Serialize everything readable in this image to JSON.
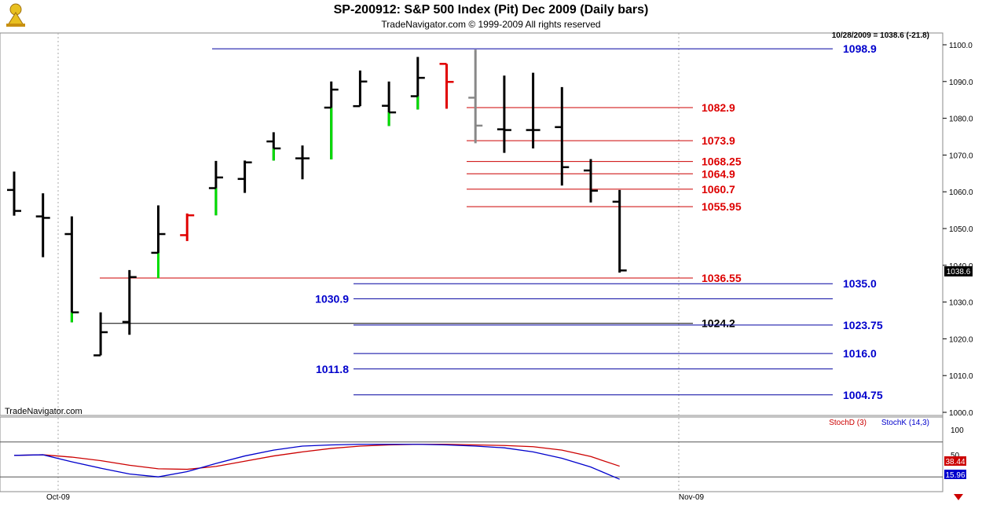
{
  "header": {
    "title": "SP-200912:  S&P 500 Index (Pit) Dec 2009  (Daily bars)",
    "subtitle": "TradeNavigator.com © 1999-2009 All rights reserved"
  },
  "watermark": "TradeNavigator.com",
  "colors": {
    "up": "#00dd00",
    "down": "#e00000",
    "neutral": "#000000",
    "gray": "#888888",
    "blue_line": "#0000a0",
    "red_line": "#cc0000"
  },
  "chart_data": [
    {
      "type": "ohlc",
      "title": "SP-200912:  S&P 500 Index (Pit) Dec 2009  (Daily bars)",
      "last_readout": "10/28/2009 = 1038.6 (-21.8)",
      "last_price_label": "1038.6",
      "x_tick_labels": [
        "Oct-09",
        "Nov-09"
      ],
      "y_ticks": [
        "1100.0",
        "1090.0",
        "1080.0",
        "1070.0",
        "1060.0",
        "1050.0",
        "1040.0",
        "1030.0",
        "1020.0",
        "1010.0",
        "1000.0"
      ],
      "ylim": [
        1000,
        1100
      ],
      "bars": [
        {
          "o": 1060.5,
          "h": 1065.5,
          "l": 1053.5,
          "c": 1054.8,
          "color": "neutral"
        },
        {
          "o": 1053.3,
          "h": 1059.6,
          "l": 1042.2,
          "c": 1052.9,
          "color": "neutral"
        },
        {
          "o": 1048.5,
          "h": 1053.3,
          "l": 1024.5,
          "c": 1027.2,
          "color": "up"
        },
        {
          "o": 1015.5,
          "h": 1027.2,
          "l": 1015.5,
          "c": 1021.8,
          "color": "up"
        },
        {
          "o": 1024.6,
          "h": 1038.7,
          "l": 1021.1,
          "c": 1036.8,
          "color": "neutral"
        },
        {
          "o": 1043.4,
          "h": 1056.3,
          "l": 1036.5,
          "c": 1048.5,
          "color": "up"
        },
        {
          "o": 1048.2,
          "h": 1054.1,
          "l": 1046.6,
          "c": 1053.6,
          "color": "down"
        },
        {
          "o": 1061.0,
          "h": 1068.4,
          "l": 1053.6,
          "c": 1063.9,
          "color": "up"
        },
        {
          "o": 1063.5,
          "h": 1068.5,
          "l": 1059.7,
          "c": 1068.0,
          "color": "neutral"
        },
        {
          "o": 1073.7,
          "h": 1076.2,
          "l": 1068.5,
          "c": 1071.8,
          "color": "up"
        },
        {
          "o": 1069.1,
          "h": 1072.6,
          "l": 1063.4,
          "c": 1069.1,
          "color": "neutral"
        },
        {
          "o": 1082.9,
          "h": 1090.0,
          "l": 1068.8,
          "c": 1087.8,
          "color": "up"
        },
        {
          "o": 1083.3,
          "h": 1093.0,
          "l": 1083.3,
          "c": 1090.0,
          "color": "neutral"
        },
        {
          "o": 1083.4,
          "h": 1090.0,
          "l": 1077.9,
          "c": 1081.6,
          "color": "up"
        },
        {
          "o": 1086.0,
          "h": 1096.7,
          "l": 1082.4,
          "c": 1091.0,
          "color": "up"
        },
        {
          "o": 1094.8,
          "h": 1094.8,
          "l": 1082.6,
          "c": 1089.9,
          "color": "down"
        },
        {
          "o": 1085.6,
          "h": 1098.7,
          "l": 1073.2,
          "c": 1078.0,
          "color": "gray"
        },
        {
          "o": 1077.0,
          "h": 1091.6,
          "l": 1070.6,
          "c": 1076.8,
          "color": "neutral"
        },
        {
          "o": 1076.8,
          "h": 1092.4,
          "l": 1071.8,
          "c": 1076.8,
          "color": "neutral"
        },
        {
          "o": 1077.6,
          "h": 1088.5,
          "l": 1061.7,
          "c": 1066.7,
          "color": "neutral"
        },
        {
          "o": 1065.8,
          "h": 1068.9,
          "l": 1057.1,
          "c": 1060.3,
          "color": "neutral"
        },
        {
          "o": 1057.3,
          "h": 1060.5,
          "l": 1038.0,
          "c": 1038.6,
          "color": "neutral"
        }
      ],
      "levels": [
        {
          "value": 1098.9,
          "label": "1098.9",
          "color": "blue"
        },
        {
          "value": 1082.9,
          "label": "1082.9",
          "color": "red"
        },
        {
          "value": 1073.9,
          "label": "1073.9",
          "color": "red"
        },
        {
          "value": 1068.25,
          "label": "1068.25",
          "color": "red"
        },
        {
          "value": 1064.9,
          "label": "1064.9",
          "color": "red"
        },
        {
          "value": 1060.7,
          "label": "1060.7",
          "color": "red"
        },
        {
          "value": 1055.95,
          "label": "1055.95",
          "color": "red"
        },
        {
          "value": 1036.55,
          "label": "1036.55",
          "color": "red"
        },
        {
          "value": 1035.0,
          "label": "1035.0",
          "color": "blue"
        },
        {
          "value": 1030.9,
          "label": "1030.9",
          "color": "blue"
        },
        {
          "value": 1024.2,
          "label": "1024.2",
          "color": "black"
        },
        {
          "value": 1023.75,
          "label": "1023.75",
          "color": "blue"
        },
        {
          "value": 1016.0,
          "label": "1016.0",
          "color": "blue"
        },
        {
          "value": 1011.8,
          "label": "1011.8",
          "color": "blue"
        },
        {
          "value": 1004.75,
          "label": "1004.75",
          "color": "blue"
        }
      ]
    },
    {
      "type": "line",
      "title": "",
      "legend": [
        "StochD (3)",
        "StochK (14,3)"
      ],
      "y_ticks": [
        "100",
        "50"
      ],
      "ylim": [
        0,
        100
      ],
      "reference_lines": [
        80,
        20
      ],
      "series": [
        {
          "name": "StochD (3)",
          "color": "#cc0000",
          "values": [
            57,
            58,
            54,
            48,
            40,
            34,
            33,
            38,
            47,
            56,
            63,
            69,
            73,
            75,
            76,
            76,
            75,
            74,
            72,
            66,
            55,
            38.44
          ]
        },
        {
          "name": "StochK (14,3)",
          "color": "#0000cc",
          "values": [
            57,
            58,
            46,
            35,
            25,
            20,
            29,
            43,
            56,
            66,
            73,
            75,
            76,
            76,
            76,
            75,
            73,
            70,
            63,
            52,
            37,
            15.96
          ]
        }
      ],
      "last_values": [
        "38.44",
        "15.96"
      ]
    }
  ]
}
